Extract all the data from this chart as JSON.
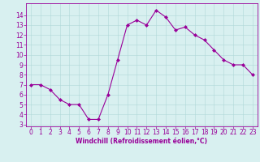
{
  "x": [
    0,
    1,
    2,
    3,
    4,
    5,
    6,
    7,
    8,
    9,
    10,
    11,
    12,
    13,
    14,
    15,
    16,
    17,
    18,
    19,
    20,
    21,
    22,
    23
  ],
  "y": [
    7.0,
    7.0,
    6.5,
    5.5,
    5.0,
    5.0,
    3.5,
    3.5,
    6.0,
    9.5,
    13.0,
    13.5,
    13.0,
    14.5,
    13.8,
    12.5,
    12.8,
    12.0,
    11.5,
    10.5,
    9.5,
    9.0,
    9.0,
    8.0
  ],
  "xlabel": "Windchill (Refroidissement éolien,°C)",
  "ylim": [
    2.8,
    15.2
  ],
  "xlim": [
    -0.5,
    23.5
  ],
  "yticks": [
    3,
    4,
    5,
    6,
    7,
    8,
    9,
    10,
    11,
    12,
    13,
    14
  ],
  "xticks": [
    0,
    1,
    2,
    3,
    4,
    5,
    6,
    7,
    8,
    9,
    10,
    11,
    12,
    13,
    14,
    15,
    16,
    17,
    18,
    19,
    20,
    21,
    22,
    23
  ],
  "line_color": "#990099",
  "marker": "D",
  "marker_size": 2.0,
  "background_color": "#d8f0f0",
  "grid_color": "#b0d8d8",
  "tick_label_color": "#990099",
  "xlabel_color": "#990099",
  "axis_color": "#990099",
  "tick_fontsize": 5.5,
  "xlabel_fontsize": 5.5
}
